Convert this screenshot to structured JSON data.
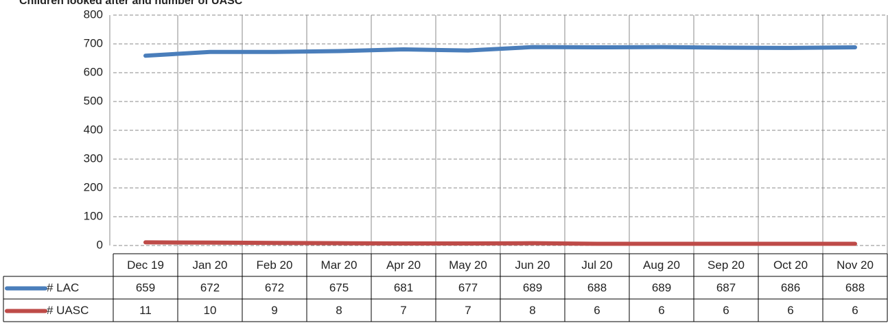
{
  "chart_data": {
    "type": "line",
    "title": "Children looked after and number of UASC",
    "categories": [
      "Dec 19",
      "Jan 20",
      "Feb 20",
      "Mar 20",
      "Apr 20",
      "May 20",
      "Jun 20",
      "Jul 20",
      "Aug 20",
      "Sep 20",
      "Oct 20",
      "Nov 20"
    ],
    "series": [
      {
        "name": "# LAC",
        "color": "#4a7ebb",
        "values": [
          659,
          672,
          672,
          675,
          681,
          677,
          689,
          688,
          689,
          687,
          686,
          688
        ]
      },
      {
        "name": "# UASC",
        "color": "#be4b48",
        "values": [
          11,
          10,
          9,
          8,
          7,
          7,
          8,
          6,
          6,
          6,
          6,
          6
        ]
      }
    ],
    "ylim": [
      0,
      800
    ],
    "yticks": [
      0,
      100,
      200,
      300,
      400,
      500,
      600,
      700,
      800
    ],
    "grid": true
  }
}
